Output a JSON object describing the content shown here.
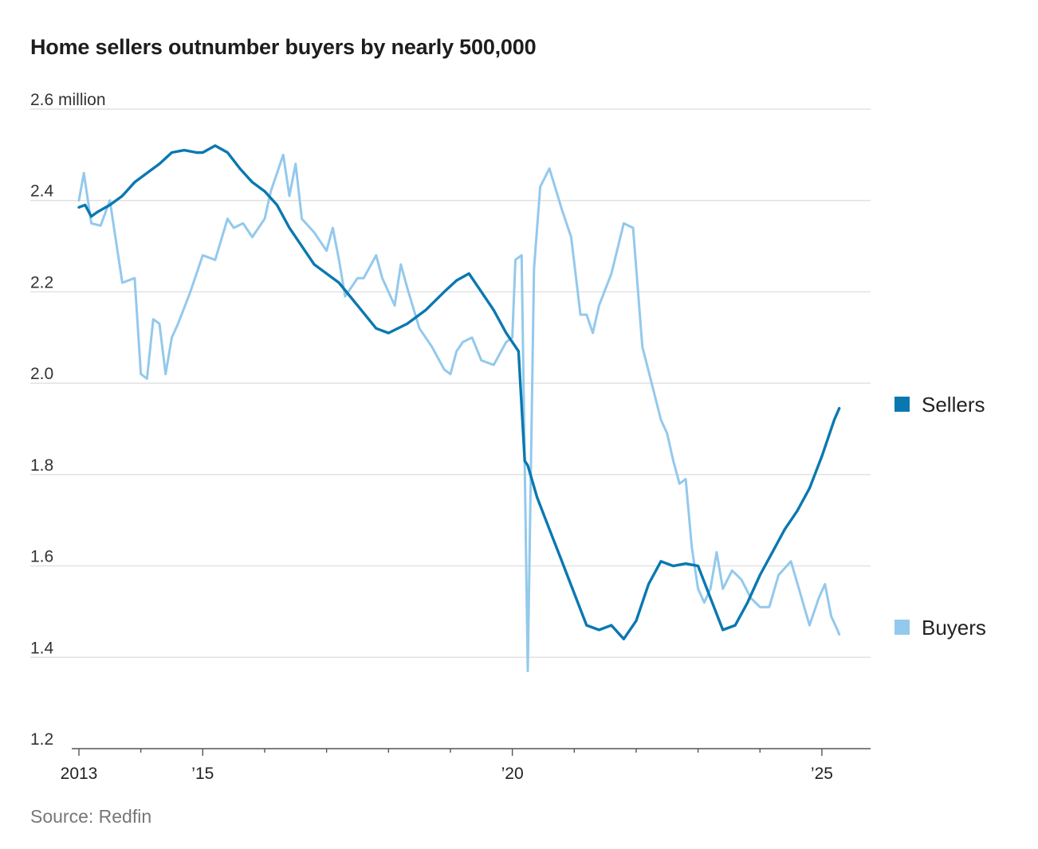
{
  "title": "Home sellers outnumber buyers by nearly 500,000",
  "source": "Source: Redfin",
  "colors": {
    "sellers": "#0a78b0",
    "buyers": "#93c9ec",
    "grid": "#dcdcdc",
    "axis": "#555555"
  },
  "chart_data": {
    "type": "line",
    "title": "Home sellers outnumber buyers by nearly 500,000",
    "xlabel": "",
    "ylabel": "",
    "unit_label": "2.6 million",
    "ylim": [
      1.2,
      2.6
    ],
    "xlim": [
      2013.0,
      2025.4
    ],
    "yticks": [
      1.2,
      1.4,
      1.6,
      1.8,
      2.0,
      2.2,
      2.4,
      2.6
    ],
    "ytick_labels": [
      "1.2",
      "1.4",
      "1.6",
      "1.8",
      "2.0",
      "2.2",
      "2.4",
      "2.6 million"
    ],
    "xticks": [
      2013,
      2015,
      2020,
      2025
    ],
    "xtick_labels": [
      "2013",
      "’15",
      "’20",
      "’25"
    ],
    "grid": true,
    "legend": "right",
    "series": [
      {
        "name": "Sellers",
        "x": [
          2013.0,
          2013.1,
          2013.2,
          2013.3,
          2013.5,
          2013.7,
          2013.9,
          2014.1,
          2014.3,
          2014.5,
          2014.7,
          2014.9,
          2015.0,
          2015.2,
          2015.4,
          2015.6,
          2015.8,
          2016.0,
          2016.2,
          2016.4,
          2016.6,
          2016.8,
          2017.0,
          2017.2,
          2017.5,
          2017.8,
          2018.0,
          2018.3,
          2018.6,
          2018.9,
          2019.1,
          2019.3,
          2019.5,
          2019.7,
          2019.9,
          2020.1,
          2020.2,
          2020.25,
          2020.4,
          2020.6,
          2020.8,
          2021.0,
          2021.2,
          2021.4,
          2021.6,
          2021.8,
          2022.0,
          2022.2,
          2022.4,
          2022.6,
          2022.8,
          2023.0,
          2023.2,
          2023.4,
          2023.6,
          2023.8,
          2024.0,
          2024.2,
          2024.4,
          2024.6,
          2024.8,
          2025.0,
          2025.2,
          2025.28
        ],
        "values": [
          2.385,
          2.39,
          2.365,
          2.375,
          2.39,
          2.41,
          2.44,
          2.46,
          2.48,
          2.505,
          2.51,
          2.505,
          2.505,
          2.52,
          2.505,
          2.47,
          2.44,
          2.42,
          2.39,
          2.34,
          2.3,
          2.26,
          2.24,
          2.22,
          2.17,
          2.12,
          2.11,
          2.13,
          2.16,
          2.2,
          2.225,
          2.24,
          2.2,
          2.16,
          2.11,
          2.07,
          1.83,
          1.82,
          1.75,
          1.68,
          1.61,
          1.54,
          1.47,
          1.46,
          1.47,
          1.44,
          1.48,
          1.56,
          1.61,
          1.6,
          1.605,
          1.6,
          1.53,
          1.46,
          1.47,
          1.52,
          1.58,
          1.63,
          1.68,
          1.72,
          1.77,
          1.84,
          1.92,
          1.945
        ]
      },
      {
        "name": "Buyers",
        "x": [
          2013.0,
          2013.08,
          2013.2,
          2013.35,
          2013.5,
          2013.7,
          2013.9,
          2014.0,
          2014.1,
          2014.2,
          2014.3,
          2014.4,
          2014.5,
          2014.6,
          2014.8,
          2015.0,
          2015.2,
          2015.4,
          2015.5,
          2015.65,
          2015.8,
          2016.0,
          2016.1,
          2016.3,
          2016.4,
          2016.5,
          2016.6,
          2016.8,
          2017.0,
          2017.1,
          2017.2,
          2017.3,
          2017.5,
          2017.6,
          2017.8,
          2017.9,
          2018.1,
          2018.2,
          2018.3,
          2018.5,
          2018.7,
          2018.9,
          2019.0,
          2019.1,
          2019.2,
          2019.35,
          2019.5,
          2019.7,
          2019.9,
          2020.0,
          2020.05,
          2020.15,
          2020.25,
          2020.35,
          2020.45,
          2020.6,
          2020.8,
          2020.95,
          2021.1,
          2021.2,
          2021.3,
          2021.4,
          2021.6,
          2021.8,
          2021.95,
          2022.1,
          2022.25,
          2022.4,
          2022.5,
          2022.6,
          2022.7,
          2022.8,
          2022.9,
          2023.0,
          2023.1,
          2023.2,
          2023.3,
          2023.4,
          2023.55,
          2023.7,
          2023.85,
          2024.0,
          2024.15,
          2024.3,
          2024.5,
          2024.65,
          2024.8,
          2024.95,
          2025.05,
          2025.15,
          2025.25,
          2025.28
        ],
        "values": [
          2.4,
          2.46,
          2.35,
          2.345,
          2.4,
          2.22,
          2.23,
          2.02,
          2.01,
          2.14,
          2.13,
          2.02,
          2.1,
          2.13,
          2.2,
          2.28,
          2.27,
          2.36,
          2.34,
          2.35,
          2.32,
          2.36,
          2.42,
          2.5,
          2.41,
          2.48,
          2.36,
          2.33,
          2.29,
          2.34,
          2.27,
          2.19,
          2.23,
          2.23,
          2.28,
          2.23,
          2.17,
          2.26,
          2.21,
          2.12,
          2.08,
          2.03,
          2.02,
          2.07,
          2.09,
          2.1,
          2.05,
          2.04,
          2.09,
          2.1,
          2.27,
          2.28,
          1.37,
          2.25,
          2.43,
          2.47,
          2.38,
          2.32,
          2.15,
          2.15,
          2.11,
          2.17,
          2.24,
          2.35,
          2.34,
          2.08,
          2.0,
          1.92,
          1.89,
          1.83,
          1.78,
          1.79,
          1.64,
          1.55,
          1.52,
          1.55,
          1.63,
          1.55,
          1.59,
          1.57,
          1.53,
          1.51,
          1.51,
          1.58,
          1.61,
          1.54,
          1.47,
          1.53,
          1.56,
          1.49,
          1.46,
          1.45
        ]
      }
    ]
  }
}
